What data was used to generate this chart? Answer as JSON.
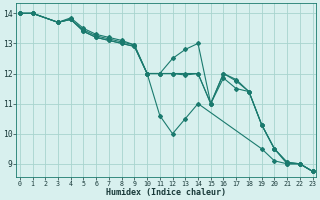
{
  "xlabel": "Humidex (Indice chaleur)",
  "xlim": [
    -0.3,
    23.3
  ],
  "ylim": [
    8.55,
    14.35
  ],
  "yticks": [
    9,
    10,
    11,
    12,
    13,
    14
  ],
  "xticks": [
    0,
    1,
    2,
    3,
    4,
    5,
    6,
    7,
    8,
    9,
    10,
    11,
    12,
    13,
    14,
    15,
    16,
    17,
    18,
    19,
    20,
    21,
    22,
    23
  ],
  "bg_color": "#d8f0ee",
  "grid_color": "#a8d4ce",
  "line_color": "#1a7a6e",
  "lines": [
    {
      "x": [
        0,
        1,
        3,
        4,
        5,
        6,
        7,
        8,
        9,
        10,
        11,
        12,
        13,
        14,
        19,
        20,
        21,
        22,
        23
      ],
      "y": [
        14,
        14,
        13.7,
        13.85,
        13.5,
        13.3,
        13.2,
        13.1,
        12.95,
        12.0,
        10.6,
        10.0,
        10.5,
        11.0,
        9.5,
        9.1,
        9.0,
        9.0,
        8.75
      ]
    },
    {
      "x": [
        0,
        1,
        3,
        4,
        5,
        6,
        7,
        8,
        9,
        10,
        11,
        12,
        13,
        14,
        15,
        16,
        17,
        18,
        19,
        20,
        21,
        22,
        23
      ],
      "y": [
        14,
        14,
        13.7,
        13.8,
        13.45,
        13.25,
        13.15,
        13.05,
        12.95,
        12.0,
        12.0,
        12.0,
        11.95,
        12.0,
        11.0,
        12.0,
        11.8,
        11.4,
        10.3,
        9.5,
        9.05,
        9.0,
        8.75
      ]
    },
    {
      "x": [
        0,
        1,
        3,
        4,
        5,
        6,
        7,
        8,
        9,
        10,
        11,
        12,
        13,
        14,
        15,
        16,
        17,
        18,
        19,
        20,
        21,
        22,
        23
      ],
      "y": [
        14,
        14,
        13.7,
        13.8,
        13.4,
        13.2,
        13.1,
        13.0,
        12.9,
        12.0,
        12.0,
        12.0,
        12.0,
        12.0,
        11.0,
        12.0,
        11.75,
        11.4,
        10.3,
        9.5,
        9.05,
        9.0,
        8.75
      ]
    },
    {
      "x": [
        0,
        1,
        3,
        4,
        5,
        6,
        7,
        8,
        9,
        10,
        11,
        12,
        13,
        14,
        15,
        16,
        17,
        18,
        19,
        20,
        21,
        22,
        23
      ],
      "y": [
        14,
        14,
        13.7,
        13.8,
        13.4,
        13.2,
        13.1,
        13.0,
        12.9,
        12.0,
        12.0,
        12.5,
        12.8,
        13.0,
        11.0,
        11.85,
        11.5,
        11.4,
        10.3,
        9.5,
        9.0,
        9.0,
        8.75
      ]
    }
  ]
}
